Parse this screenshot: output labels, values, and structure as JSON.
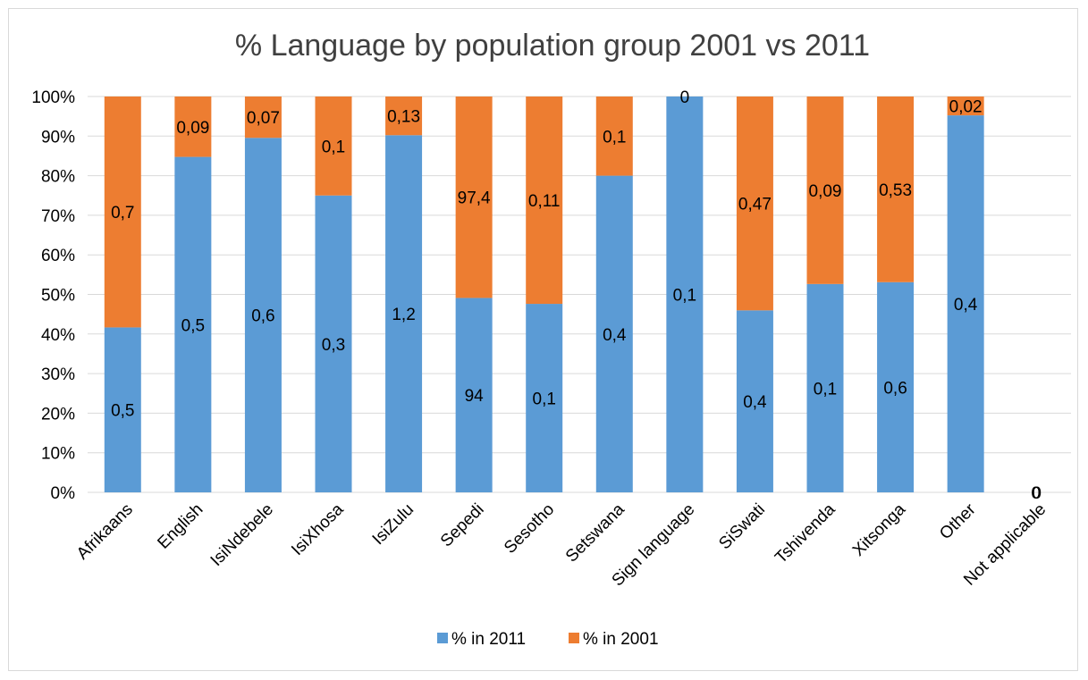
{
  "chart_data": {
    "type": "bar",
    "stacked": "percent",
    "title": "% Language by population group 2001 vs 2011",
    "xlabel": "",
    "ylabel": "",
    "ylim": [
      0,
      100
    ],
    "yticks": [
      "0%",
      "10%",
      "20%",
      "30%",
      "40%",
      "50%",
      "60%",
      "70%",
      "80%",
      "90%",
      "100%"
    ],
    "grid": true,
    "legend_position": "bottom",
    "categories": [
      "Afrikaans",
      "English",
      "IsiNdebele",
      "IsiXhosa",
      "IsiZulu",
      "Sepedi",
      "Sesotho",
      "Setswana",
      "Sign language",
      "SiSwati",
      "Tshivenda",
      "Xitsonga",
      "Other",
      "Not applicable"
    ],
    "series": [
      {
        "name": "% in 2011",
        "color": "#5b9bd5",
        "values": [
          0.5,
          0.5,
          0.6,
          0.3,
          1.2,
          94,
          0.1,
          0.4,
          0.1,
          0.4,
          0.1,
          0.6,
          0.4,
          0
        ],
        "labels": [
          "0,5",
          "0,5",
          "0,6",
          "0,3",
          "1,2",
          "94",
          "0,1",
          "0,4",
          "0,1",
          "0,4",
          "0,1",
          "0,6",
          "0,4",
          "0"
        ]
      },
      {
        "name": "% in 2001",
        "color": "#ed7d31",
        "values": [
          0.7,
          0.09,
          0.07,
          0.1,
          0.13,
          97.4,
          0.11,
          0.1,
          0,
          0.47,
          0.09,
          0.53,
          0.02,
          0
        ],
        "labels": [
          "0,7",
          "0,09",
          "0,07",
          "0,1",
          "0,13",
          "97,4",
          "0,11",
          "0,1",
          "0",
          "0,47",
          "0,09",
          "0,53",
          "0,02",
          "0"
        ]
      }
    ]
  }
}
